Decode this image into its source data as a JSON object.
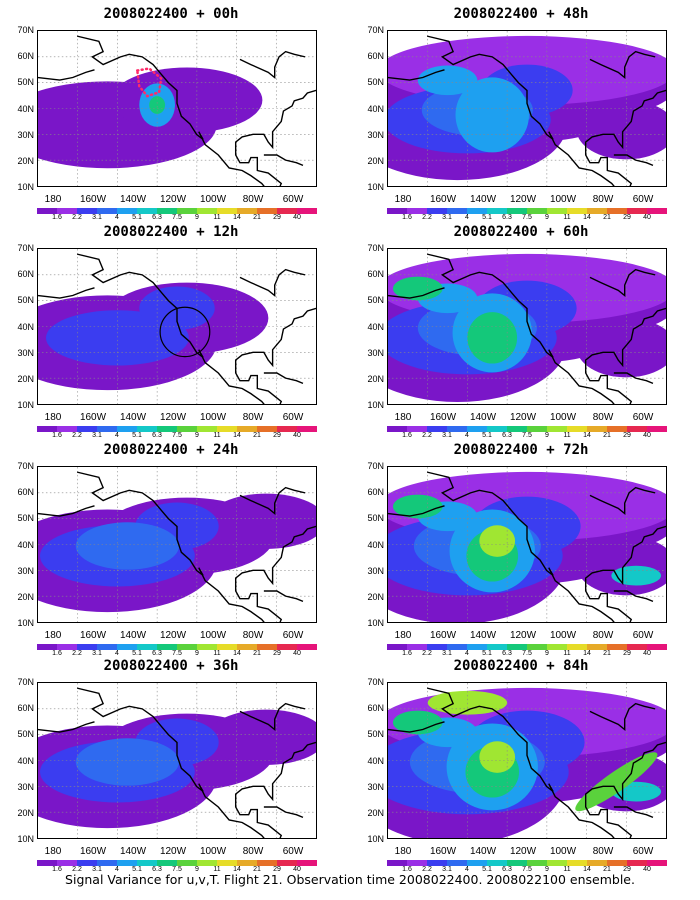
{
  "figure": {
    "caption": "Signal Variance for u,v,T. Flight 21. Observation time 2008022400. 2008022100 ensemble.",
    "lat_labels": [
      "70N",
      "60N",
      "50N",
      "40N",
      "30N",
      "20N",
      "10N"
    ],
    "lon_labels": [
      "180",
      "160W",
      "140W",
      "120W",
      "100W",
      "80W",
      "60W"
    ],
    "colorbar": {
      "levels": [
        "1.6",
        "2.2",
        "3.1",
        "4",
        "5.1",
        "6.3",
        "7.5",
        "9",
        "11",
        "14",
        "21",
        "29",
        "40"
      ],
      "colors": [
        "#7a16c8",
        "#9a2fe6",
        "#3b3df0",
        "#2f6af0",
        "#1ea0f0",
        "#14c8c8",
        "#14c87a",
        "#5ad23c",
        "#a0e632",
        "#e6dc28",
        "#e6aa28",
        "#e67028",
        "#e62850",
        "#e6147a"
      ]
    },
    "panels": [
      {
        "title": "2008022400 + 00h",
        "intensity": 1,
        "marker": "dots"
      },
      {
        "title": "2008022400 + 48h",
        "intensity": 4,
        "marker": "none"
      },
      {
        "title": "2008022400 + 12h",
        "intensity": 2,
        "marker": "circle"
      },
      {
        "title": "2008022400 + 60h",
        "intensity": 5,
        "marker": "none"
      },
      {
        "title": "2008022400 + 24h",
        "intensity": 3,
        "marker": "none"
      },
      {
        "title": "2008022400 + 72h",
        "intensity": 6,
        "marker": "none"
      },
      {
        "title": "2008022400 + 36h",
        "intensity": 3,
        "marker": "none"
      },
      {
        "title": "2008022400 + 84h",
        "intensity": 7,
        "marker": "none"
      }
    ]
  }
}
